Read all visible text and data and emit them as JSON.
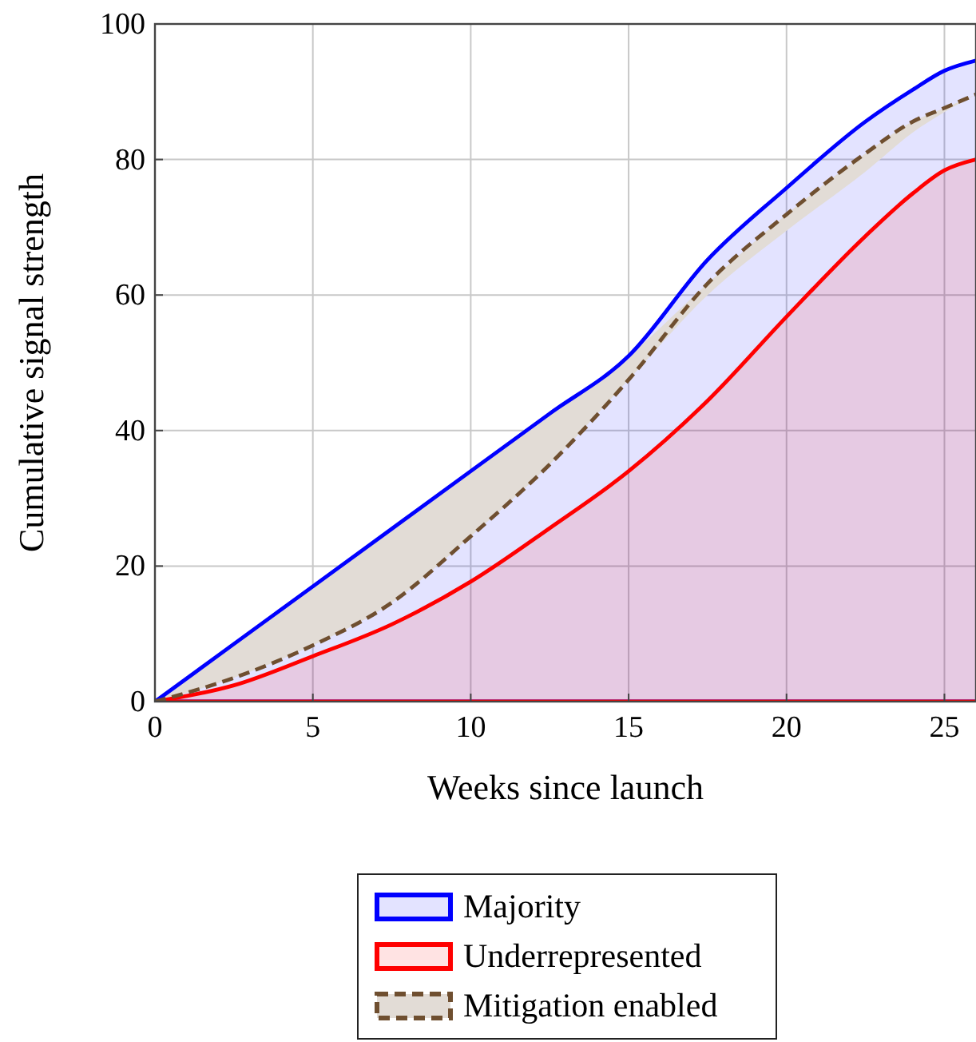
{
  "chart_data": {
    "type": "area",
    "xlabel": "Weeks since launch",
    "ylabel": "Cumulative signal strength",
    "x": [
      0,
      2.5,
      5,
      7.5,
      10,
      12.5,
      15,
      17.5,
      20,
      22.5,
      24,
      25,
      26
    ],
    "xlim": [
      0,
      26
    ],
    "xticks": [
      0,
      5,
      10,
      15,
      20,
      25
    ],
    "ylim": [
      0,
      100
    ],
    "yticks": [
      0,
      20,
      40,
      60,
      80,
      100
    ],
    "grid": true,
    "legend": "bottom",
    "series": [
      {
        "name": "Majority",
        "color": "#0000ff",
        "values": [
          0,
          8.5,
          17,
          25.5,
          34,
          42.5,
          51,
          65.2,
          75.8,
          85.6,
          90.3,
          93.1,
          94.6
        ]
      },
      {
        "name": "Underrepresented",
        "color": "#ff0000",
        "values": [
          0,
          2.4,
          6.7,
          11.4,
          17.7,
          25.6,
          34,
          44.4,
          56.8,
          68.7,
          75,
          78.4,
          80
        ]
      },
      {
        "name": "Mitigation enabled",
        "type": "line",
        "line_style": "dashed",
        "color": "#6f4f30",
        "values": [
          0,
          3.5,
          8.3,
          14.6,
          24.4,
          35,
          47.5,
          61.7,
          71.9,
          80.9,
          85.6,
          87.6,
          89.6
        ],
        "lower": [
          0,
          3.5,
          8.3,
          14.6,
          24.4,
          35,
          47.5,
          60,
          69.5,
          78.2,
          84,
          87,
          89.6
        ],
        "upper": [
          0,
          8.5,
          17,
          25.5,
          34,
          42.5,
          51,
          61.7,
          71.9,
          80.9,
          85.6,
          87.6,
          89.6
        ]
      }
    ]
  }
}
